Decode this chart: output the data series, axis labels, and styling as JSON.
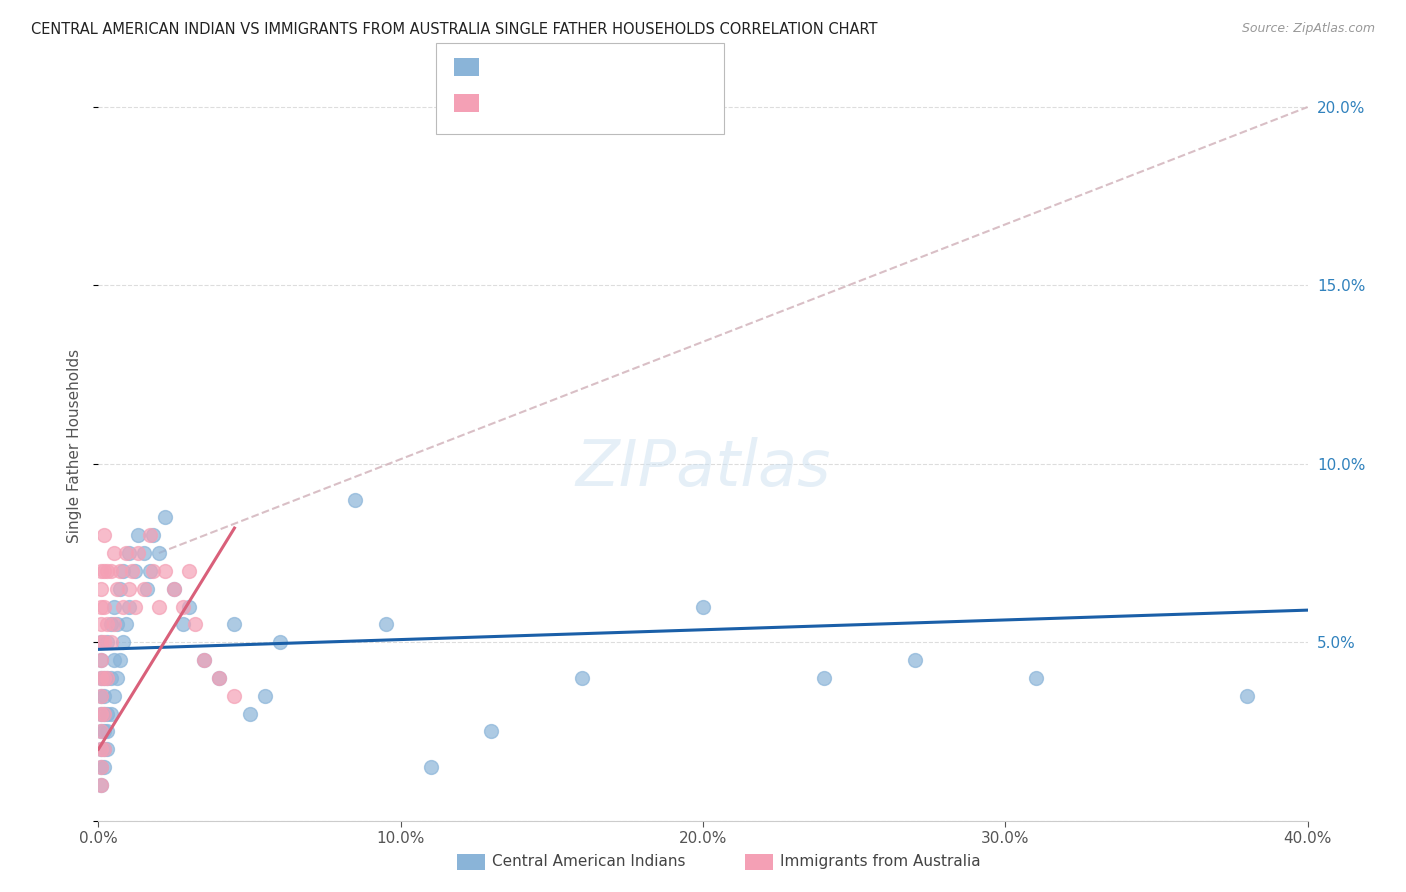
{
  "title": "CENTRAL AMERICAN INDIAN VS IMMIGRANTS FROM AUSTRALIA SINGLE FATHER HOUSEHOLDS CORRELATION CHART",
  "source": "Source: ZipAtlas.com",
  "ylabel": "Single Father Households",
  "xlim": [
    0.0,
    0.4
  ],
  "ylim": [
    0.0,
    0.21
  ],
  "xticks": [
    0.0,
    0.1,
    0.2,
    0.3,
    0.4
  ],
  "xticklabels": [
    "0.0%",
    "10.0%",
    "20.0%",
    "30.0%",
    "40.0%"
  ],
  "yticks": [
    0.0,
    0.05,
    0.1,
    0.15,
    0.2
  ],
  "yticklabels_right": [
    "",
    "5.0%",
    "10.0%",
    "15.0%",
    "20.0%"
  ],
  "color_blue": "#8ab4d8",
  "color_pink": "#f4a0b5",
  "color_blue_line": "#1a5fa8",
  "color_pink_line": "#d9607a",
  "color_dashed": "#d0b0b8",
  "color_blue_text": "#3182bd",
  "watermark": "ZIPatlas",
  "blue_x": [
    0.001,
    0.001,
    0.001,
    0.001,
    0.001,
    0.001,
    0.001,
    0.001,
    0.001,
    0.002,
    0.002,
    0.002,
    0.002,
    0.002,
    0.002,
    0.003,
    0.003,
    0.003,
    0.003,
    0.003,
    0.004,
    0.004,
    0.004,
    0.005,
    0.005,
    0.005,
    0.006,
    0.006,
    0.007,
    0.007,
    0.008,
    0.008,
    0.009,
    0.01,
    0.01,
    0.012,
    0.013,
    0.015,
    0.016,
    0.017,
    0.018,
    0.02,
    0.022,
    0.025,
    0.028,
    0.03,
    0.035,
    0.04,
    0.045,
    0.05,
    0.055,
    0.06,
    0.085,
    0.095,
    0.11,
    0.13,
    0.16,
    0.2,
    0.24,
    0.27,
    0.31,
    0.38
  ],
  "blue_y": [
    0.01,
    0.015,
    0.02,
    0.025,
    0.03,
    0.035,
    0.04,
    0.045,
    0.05,
    0.015,
    0.02,
    0.025,
    0.03,
    0.035,
    0.04,
    0.02,
    0.025,
    0.03,
    0.04,
    0.05,
    0.03,
    0.04,
    0.055,
    0.035,
    0.045,
    0.06,
    0.04,
    0.055,
    0.045,
    0.065,
    0.05,
    0.07,
    0.055,
    0.06,
    0.075,
    0.07,
    0.08,
    0.075,
    0.065,
    0.07,
    0.08,
    0.075,
    0.085,
    0.065,
    0.055,
    0.06,
    0.045,
    0.04,
    0.055,
    0.03,
    0.035,
    0.05,
    0.09,
    0.055,
    0.015,
    0.025,
    0.04,
    0.06,
    0.04,
    0.045,
    0.04,
    0.035
  ],
  "pink_x": [
    0.001,
    0.001,
    0.001,
    0.001,
    0.001,
    0.001,
    0.001,
    0.001,
    0.001,
    0.001,
    0.001,
    0.001,
    0.001,
    0.002,
    0.002,
    0.002,
    0.002,
    0.002,
    0.002,
    0.002,
    0.003,
    0.003,
    0.003,
    0.004,
    0.004,
    0.005,
    0.005,
    0.006,
    0.007,
    0.008,
    0.009,
    0.01,
    0.011,
    0.012,
    0.013,
    0.015,
    0.017,
    0.018,
    0.02,
    0.022,
    0.025,
    0.028,
    0.03,
    0.032,
    0.035,
    0.04,
    0.045
  ],
  "pink_y": [
    0.01,
    0.015,
    0.02,
    0.025,
    0.03,
    0.035,
    0.04,
    0.045,
    0.05,
    0.055,
    0.06,
    0.065,
    0.07,
    0.02,
    0.03,
    0.04,
    0.05,
    0.06,
    0.07,
    0.08,
    0.04,
    0.055,
    0.07,
    0.05,
    0.07,
    0.055,
    0.075,
    0.065,
    0.07,
    0.06,
    0.075,
    0.065,
    0.07,
    0.06,
    0.075,
    0.065,
    0.08,
    0.07,
    0.06,
    0.07,
    0.065,
    0.06,
    0.07,
    0.055,
    0.045,
    0.04,
    0.035
  ],
  "background_color": "#ffffff"
}
